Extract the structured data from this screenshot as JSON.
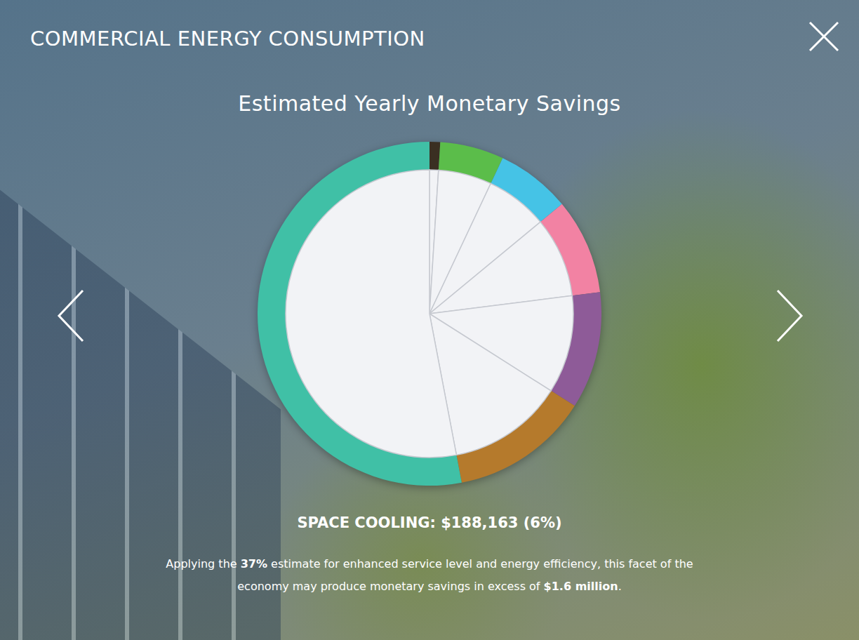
{
  "header": {
    "title": "COMMERCIAL ENERGY CONSUMPTION"
  },
  "chart_data": {
    "type": "pie",
    "title": "Estimated Yearly Monetary Savings",
    "categories": [
      null,
      null,
      null,
      null,
      null,
      null,
      null
    ],
    "values": [
      1,
      6,
      7,
      9,
      11,
      13,
      53
    ],
    "colors": [
      "#3a2f22",
      "#5bbd4a",
      "#45c3e6",
      "#f282a3",
      "#8e5b98",
      "#b57a2c",
      "#40c0a6"
    ],
    "annotations": [
      "SPACE COOLING: $188,163 (6%)"
    ]
  },
  "description": [
    "Applying the ",
    "37%",
    " estimate for enhanced service level and energy efficiency, this facet of the economy may produce monetary savings in excess of ",
    "$1.6 million",
    "."
  ]
}
